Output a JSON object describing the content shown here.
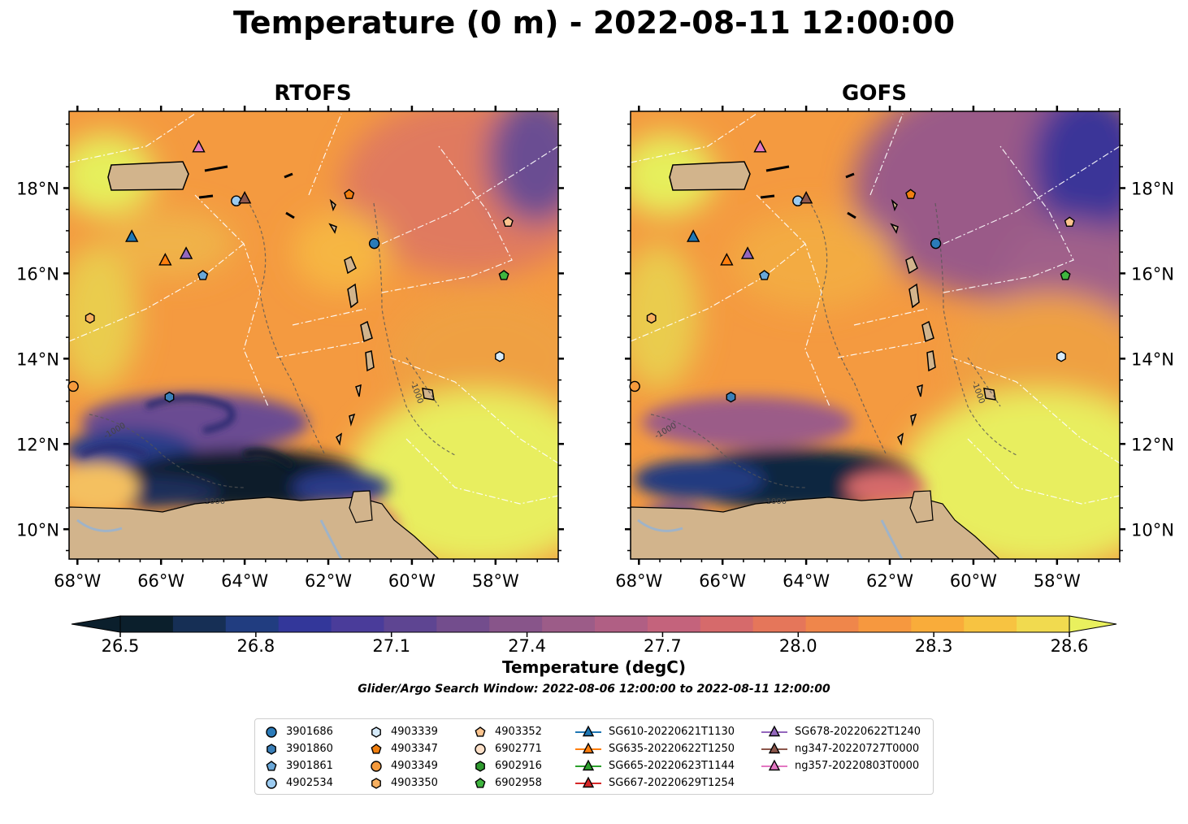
{
  "title": "Temperature (0 m) - 2022-08-11 12:00:00",
  "panels": [
    {
      "title": "RTOFS"
    },
    {
      "title": "GOFS"
    }
  ],
  "axes": {
    "lon_ticks": [
      "68°W",
      "66°W",
      "64°W",
      "62°W",
      "60°W",
      "58°W"
    ],
    "lat_ticks": [
      "18°N",
      "16°N",
      "14°N",
      "12°N",
      "10°N"
    ],
    "lon_range": [
      -68.2,
      -56.5
    ],
    "lat_range": [
      9.3,
      19.8
    ]
  },
  "colorbar": {
    "label": "Temperature (degC)",
    "ticks": [
      "26.5",
      "26.8",
      "27.1",
      "27.4",
      "27.7",
      "28.0",
      "28.3",
      "28.6"
    ],
    "range": [
      26.5,
      28.6
    ],
    "colors": [
      "#0b1f2c",
      "#162f55",
      "#213d80",
      "#33379a",
      "#4a3c9a",
      "#5e4592",
      "#734d8d",
      "#88558a",
      "#9c5c88",
      "#b05f84",
      "#c4637c",
      "#d66a6b",
      "#e5765a",
      "#ef864b",
      "#f6983f",
      "#f9ac3a",
      "#f7c341",
      "#f1da4f",
      "#e9f05e"
    ]
  },
  "contour_labels": [
    "-1000",
    "-1000",
    "-1000"
  ],
  "search_window": "Glider/Argo Search Window: 2022-08-06 12:00:00 to 2022-08-11 12:00:00",
  "legend": [
    {
      "label": "3901686",
      "marker": "circle",
      "color": "#2b7bb9"
    },
    {
      "label": "3901860",
      "marker": "hexagon",
      "color": "#3a7fb8"
    },
    {
      "label": "3901861",
      "marker": "pentagon",
      "color": "#6aa7d8"
    },
    {
      "label": "4902534",
      "marker": "circle",
      "color": "#9ccbf0"
    },
    {
      "label": "4903339",
      "marker": "hexagon",
      "color": "#d6ebfb"
    },
    {
      "label": "4903347",
      "marker": "pentagon",
      "color": "#f07f10"
    },
    {
      "label": "4903349",
      "marker": "circle",
      "color": "#f59a3c"
    },
    {
      "label": "4903350",
      "marker": "hexagon",
      "color": "#f8b060"
    },
    {
      "label": "4903352",
      "marker": "pentagon",
      "color": "#fcc48e"
    },
    {
      "label": "6902771",
      "marker": "circle",
      "color": "#fde0c8"
    },
    {
      "label": "6902916",
      "marker": "hexagon",
      "color": "#2f9a2f"
    },
    {
      "label": "6902958",
      "marker": "pentagon",
      "color": "#3fb53f"
    },
    {
      "label": "SG610-20220621T1130",
      "marker": "triangle",
      "color": "#1f77b4"
    },
    {
      "label": "SG635-20220622T1250",
      "marker": "triangle",
      "color": "#ff7f0e"
    },
    {
      "label": "SG665-20220623T1144",
      "marker": "triangle",
      "color": "#2ca02c"
    },
    {
      "label": "SG667-20220629T1254",
      "marker": "triangle",
      "color": "#d62728"
    },
    {
      "label": "SG678-20220622T1240",
      "marker": "triangle",
      "color": "#9467bd"
    },
    {
      "label": "ng347-20220727T0000",
      "marker": "triangle",
      "color": "#8c564b"
    },
    {
      "label": "ng357-20220803T0000",
      "marker": "triangle",
      "color": "#e377c2"
    }
  ],
  "markers": [
    {
      "id": "3901686",
      "lon": -60.9,
      "lat": 16.7
    },
    {
      "id": "3901860",
      "lon": -65.8,
      "lat": 13.1
    },
    {
      "id": "3901861",
      "lon": -65.0,
      "lat": 15.95
    },
    {
      "id": "4902534",
      "lon": -64.2,
      "lat": 17.7
    },
    {
      "id": "4903339",
      "lon": -57.9,
      "lat": 14.05
    },
    {
      "id": "4903347",
      "lon": -61.5,
      "lat": 17.85
    },
    {
      "id": "4903349",
      "lon": -68.1,
      "lat": 13.35
    },
    {
      "id": "4903350",
      "lon": -67.7,
      "lat": 14.95
    },
    {
      "id": "4903352",
      "lon": -57.7,
      "lat": 17.2
    },
    {
      "id": "6902958",
      "lon": -57.8,
      "lat": 15.95
    },
    {
      "id": "SG610-20220621T1130",
      "lon": -66.7,
      "lat": 16.85
    },
    {
      "id": "SG635-20220622T1250",
      "lon": -65.9,
      "lat": 16.3
    },
    {
      "id": "SG678-20220622T1240",
      "lon": -65.4,
      "lat": 16.45
    },
    {
      "id": "ng347-20220727T0000",
      "lon": -64.0,
      "lat": 17.75
    },
    {
      "id": "ng357-20220803T0000",
      "lon": -65.1,
      "lat": 18.95
    }
  ]
}
